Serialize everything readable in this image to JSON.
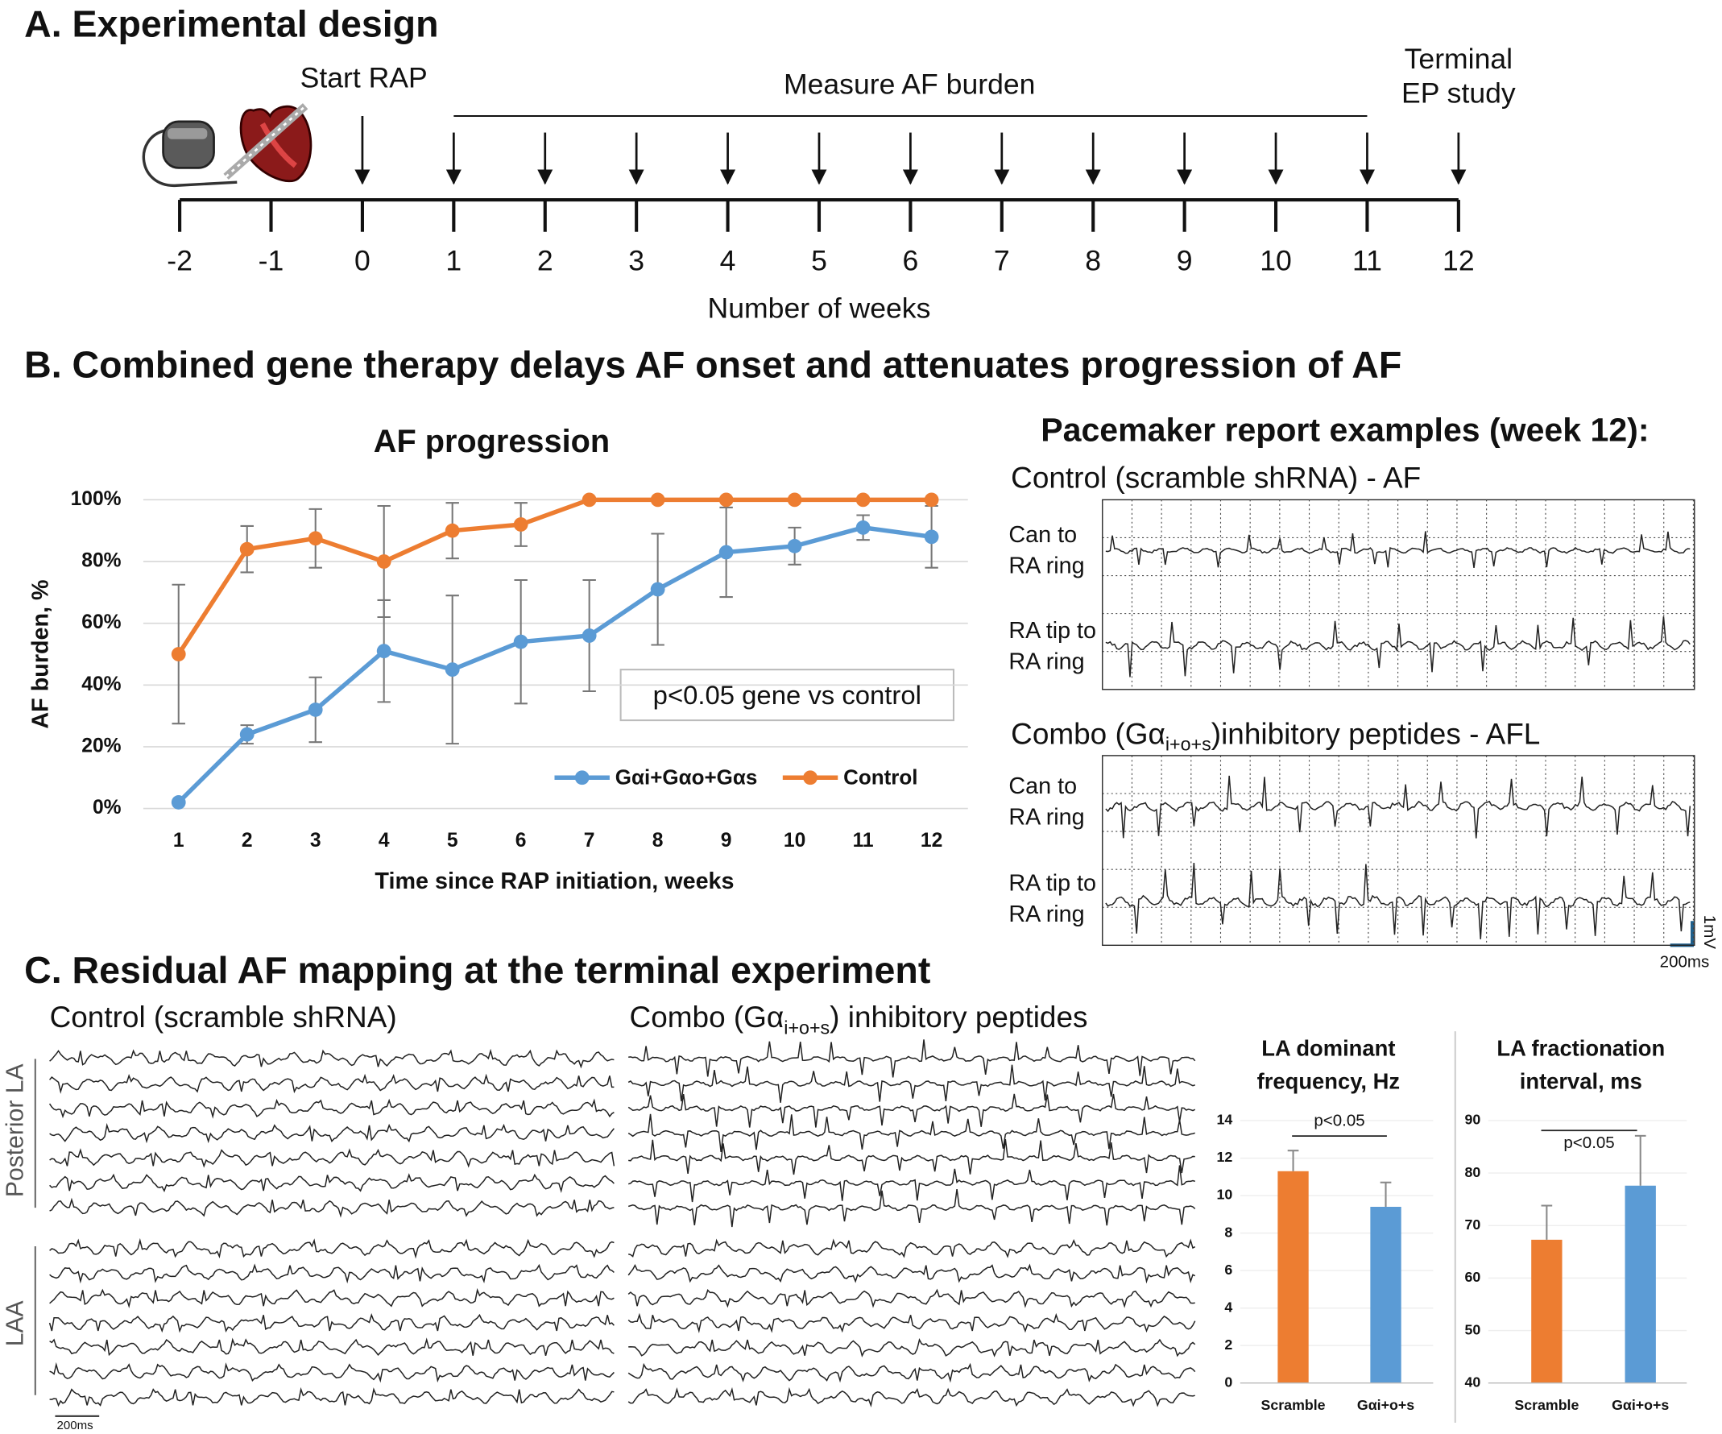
{
  "panel_a": {
    "title": "A. Experimental design",
    "start_label": "Start RAP",
    "measure_label": "Measure AF burden",
    "terminal_label": [
      "Terminal",
      "EP study"
    ],
    "axis_label": "Number of weeks",
    "ticks": [
      -2,
      -1,
      0,
      1,
      2,
      3,
      4,
      5,
      6,
      7,
      8,
      9,
      10,
      11,
      12
    ]
  },
  "panel_b": {
    "title": "B. Combined gene therapy delays AF onset and attenuates progression of AF",
    "pacemaker_title": "Pacemaker report examples (week 12):",
    "control_label": "Control (scramble shRNA) - AF",
    "combo_label": {
      "text": "Combo (Gα",
      "sub": "i+o+s",
      "tail": ")inhibitory peptides - AFL"
    },
    "channels": [
      [
        "Can to",
        "RA ring"
      ],
      [
        "RA tip to",
        "RA ring"
      ]
    ],
    "scale_v": "1mV",
    "scale_t": "200ms"
  },
  "panel_c": {
    "title": "C. Residual AF mapping at the terminal experiment",
    "control_label": "Control (scramble shRNA)",
    "combo_label": {
      "text": "Combo (Gα",
      "sub": "i+o+s",
      "tail": ") inhibitory peptides"
    },
    "regions": [
      "Posterior LA",
      "LAA"
    ],
    "scale_t": "200ms"
  },
  "chart_data": [
    {
      "type": "line",
      "title": "AF progression",
      "x_label": "Time since RAP initiation, weeks",
      "y_label": "AF burden, %",
      "categories": [
        "1",
        "2",
        "3",
        "4",
        "5",
        "6",
        "7",
        "8",
        "9",
        "10",
        "11",
        "12"
      ],
      "series": [
        {
          "name": "Gαi+Gαo+Gαs",
          "color": "#5b9bd5",
          "values": [
            2,
            24,
            32,
            51,
            45,
            54,
            56,
            71,
            83,
            85,
            91,
            88
          ],
          "errors": [
            0,
            3,
            10.5,
            16.5,
            24,
            20,
            18,
            18,
            14.5,
            6,
            4,
            10
          ]
        },
        {
          "name": "Control",
          "color": "#ed7d31",
          "values": [
            50,
            84,
            87.5,
            80,
            90,
            92,
            100,
            100,
            100,
            100,
            100,
            100
          ],
          "errors": [
            22.5,
            7.5,
            9.5,
            18,
            9,
            7,
            0,
            0,
            0,
            0,
            0,
            0
          ]
        }
      ],
      "ylim": [
        0,
        100
      ],
      "yticks": [
        {
          "value": 0,
          "label": "0%"
        },
        {
          "value": 20,
          "label": "20%"
        },
        {
          "value": 40,
          "label": "40%"
        },
        {
          "value": 60,
          "label": "60%"
        },
        {
          "value": 80,
          "label": "80%"
        },
        {
          "value": 100,
          "label": "100%"
        }
      ],
      "grid": true,
      "annotation": "p<0.05 gene vs control",
      "legend": "bottom-right"
    },
    {
      "type": "bar",
      "title": [
        "LA dominant",
        "frequency, Hz"
      ],
      "categories": [
        "Scramble",
        "Gαi+o+s"
      ],
      "values": [
        11.3,
        9.4
      ],
      "errors": [
        1.1,
        1.3
      ],
      "colors": [
        "#ed7d31",
        "#5b9bd5"
      ],
      "ylim": [
        0,
        14
      ],
      "yticks": [
        0,
        2,
        4,
        6,
        8,
        10,
        12,
        14
      ],
      "grid": true,
      "annotation": "p<0.05"
    },
    {
      "type": "bar",
      "title": [
        "LA fractionation",
        "interval, ms"
      ],
      "categories": [
        "Scramble",
        "Gαi+o+s"
      ],
      "values": [
        67.3,
        77.6
      ],
      "errors": [
        6.5,
        9.5
      ],
      "colors": [
        "#ed7d31",
        "#5b9bd5"
      ],
      "ylim": [
        40,
        90
      ],
      "yticks": [
        40,
        50,
        60,
        70,
        80,
        90
      ],
      "grid": true,
      "annotation": "p<0.05"
    }
  ]
}
